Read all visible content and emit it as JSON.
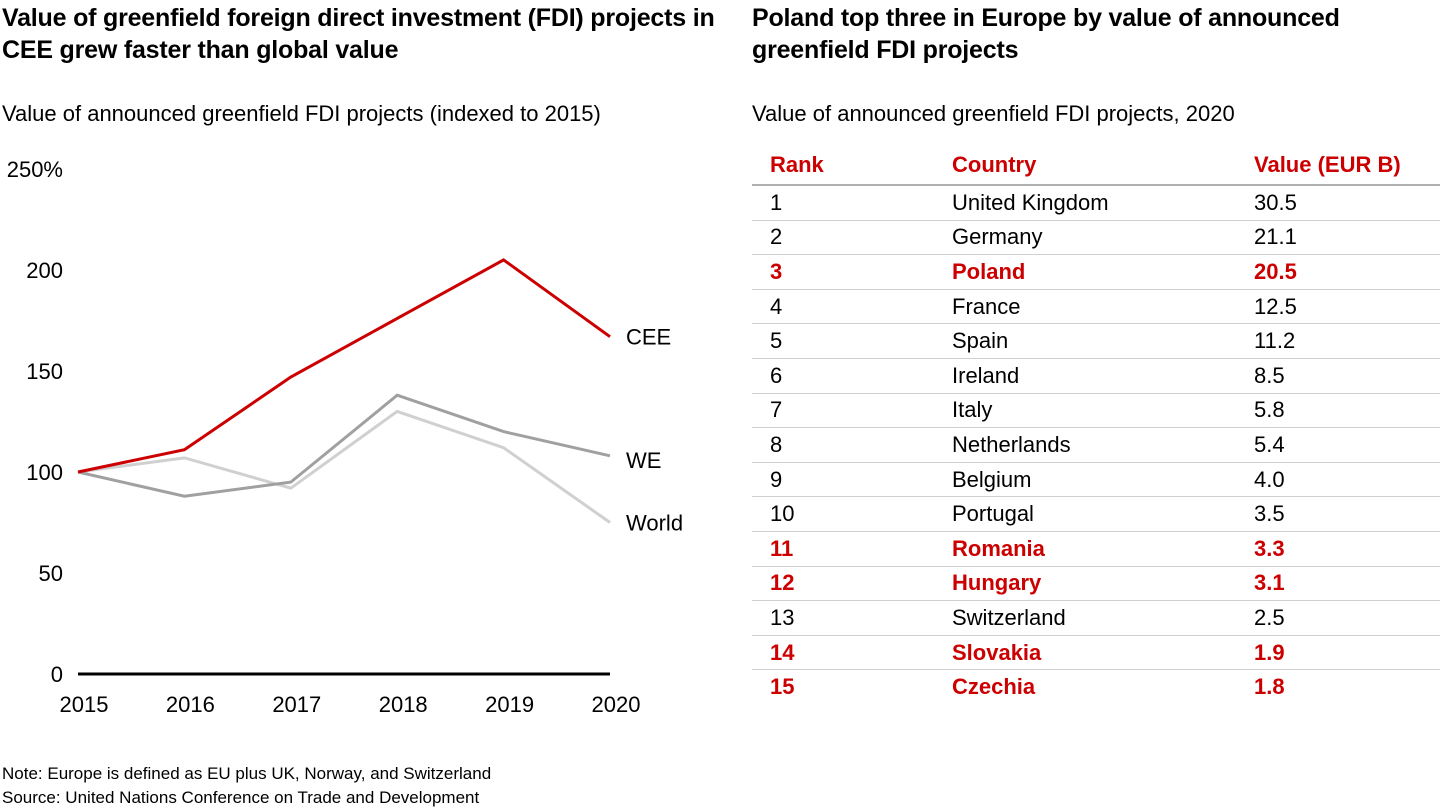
{
  "left": {
    "title": "Value of greenfield foreign direct investment (FDI) projects in CEE grew faster than global value",
    "subtitle": "Value of announced greenfield FDI projects (indexed to 2015)"
  },
  "right": {
    "title": "Poland top three in Europe by value of announced greenfield FDI projects",
    "subtitle": "Value of announced greenfield FDI projects, 2020",
    "headers": [
      "Rank",
      "Country",
      "Value (EUR B)"
    ],
    "rows": [
      {
        "rank": "1",
        "country": "United Kingdom",
        "value": "30.5",
        "highlight": false
      },
      {
        "rank": "2",
        "country": "Germany",
        "value": "21.1",
        "highlight": false
      },
      {
        "rank": "3",
        "country": "Poland",
        "value": "20.5",
        "highlight": true
      },
      {
        "rank": "4",
        "country": "France",
        "value": "12.5",
        "highlight": false
      },
      {
        "rank": "5",
        "country": "Spain",
        "value": "11.2",
        "highlight": false
      },
      {
        "rank": "6",
        "country": "Ireland",
        "value": "8.5",
        "highlight": false
      },
      {
        "rank": "7",
        "country": "Italy",
        "value": "5.8",
        "highlight": false
      },
      {
        "rank": "8",
        "country": "Netherlands",
        "value": "5.4",
        "highlight": false
      },
      {
        "rank": "9",
        "country": "Belgium",
        "value": "4.0",
        "highlight": false
      },
      {
        "rank": "10",
        "country": "Portugal",
        "value": "3.5",
        "highlight": false
      },
      {
        "rank": "11",
        "country": "Romania",
        "value": "3.3",
        "highlight": true
      },
      {
        "rank": "12",
        "country": "Hungary",
        "value": "3.1",
        "highlight": true
      },
      {
        "rank": "13",
        "country": "Switzerland",
        "value": "2.5",
        "highlight": false
      },
      {
        "rank": "14",
        "country": "Slovakia",
        "value": "1.9",
        "highlight": true
      },
      {
        "rank": "15",
        "country": "Czechia",
        "value": "1.8",
        "highlight": true
      }
    ]
  },
  "notes": {
    "note": "Note: Europe is defined as EU plus UK, Norway, and Switzerland",
    "source": "Source: United Nations Conference on Trade and Development"
  },
  "colors": {
    "accent": "#cc0000",
    "we": "#a0a0a0",
    "world": "#d0d0d0"
  },
  "chart_data": [
    {
      "type": "line",
      "title": "Value of greenfield foreign direct investment (FDI) projects in CEE grew faster than global value",
      "subtitle": "Value of announced greenfield FDI projects (indexed to 2015)",
      "xlabel": "",
      "ylabel": "",
      "x": [
        "2015",
        "2016",
        "2017",
        "2018",
        "2019",
        "2020"
      ],
      "yticks": [
        0,
        50,
        100,
        150,
        200,
        250
      ],
      "ytick_labels": [
        "0",
        "50",
        "100",
        "150",
        "200",
        "250%"
      ],
      "ylim": [
        0,
        250
      ],
      "grid": false,
      "legend": "inline-right",
      "series": [
        {
          "name": "CEE",
          "color": "#cc0000",
          "values": [
            100,
            111,
            147,
            176,
            205,
            167
          ]
        },
        {
          "name": "WE",
          "color": "#a0a0a0",
          "values": [
            100,
            88,
            95,
            138,
            120,
            108
          ]
        },
        {
          "name": "World",
          "color": "#d0d0d0",
          "values": [
            100,
            107,
            92,
            130,
            112,
            75
          ]
        }
      ]
    },
    {
      "type": "table",
      "title": "Poland top three in Europe by value of announced greenfield FDI projects",
      "subtitle": "Value of announced greenfield FDI projects, 2020",
      "columns": [
        "Rank",
        "Country",
        "Value (EUR B)"
      ],
      "rows": [
        [
          1,
          "United Kingdom",
          30.5
        ],
        [
          2,
          "Germany",
          21.1
        ],
        [
          3,
          "Poland",
          20.5
        ],
        [
          4,
          "France",
          12.5
        ],
        [
          5,
          "Spain",
          11.2
        ],
        [
          6,
          "Ireland",
          8.5
        ],
        [
          7,
          "Italy",
          5.8
        ],
        [
          8,
          "Netherlands",
          5.4
        ],
        [
          9,
          "Belgium",
          4.0
        ],
        [
          10,
          "Portugal",
          3.5
        ],
        [
          11,
          "Romania",
          3.3
        ],
        [
          12,
          "Hungary",
          3.1
        ],
        [
          13,
          "Switzerland",
          2.5
        ],
        [
          14,
          "Slovakia",
          1.9
        ],
        [
          15,
          "Czechia",
          1.8
        ]
      ]
    }
  ]
}
